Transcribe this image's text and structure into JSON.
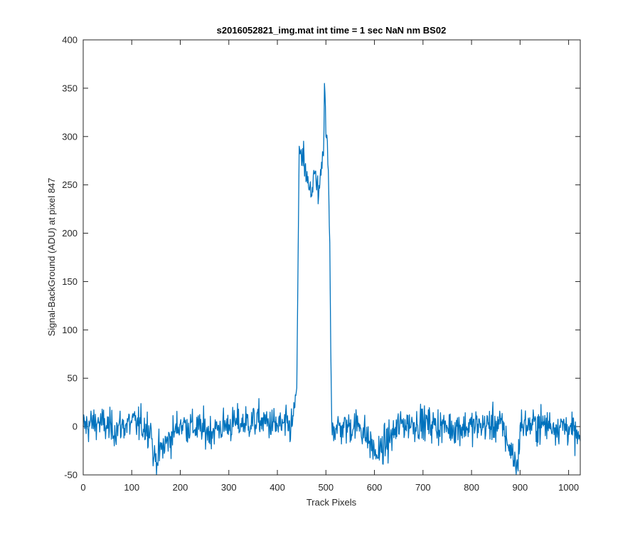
{
  "chart_data": {
    "type": "line",
    "title": "s2016052821_img.mat int time = 1 sec  NaN nm BS02",
    "xlabel": "Track Pixels",
    "ylabel": "Signal-BackGround (ADU) at pixel 847",
    "xlim": [
      0,
      1024
    ],
    "ylim": [
      -50,
      400
    ],
    "xticks": [
      0,
      100,
      200,
      300,
      400,
      500,
      600,
      700,
      800,
      900,
      1000
    ],
    "yticks": [
      -50,
      0,
      50,
      100,
      150,
      200,
      250,
      300,
      350,
      400
    ],
    "grid": false,
    "legend": "none",
    "series": [
      {
        "color": "#0072BD",
        "x": [
          0,
          30,
          60,
          100,
          140,
          145,
          200,
          260,
          300,
          365,
          400,
          430,
          440,
          445,
          450,
          455,
          460,
          465,
          470,
          475,
          480,
          485,
          490,
          495,
          497,
          500,
          503,
          505,
          508,
          510,
          512,
          515,
          520,
          570,
          605,
          655,
          700,
          750,
          800,
          860,
          895,
          900,
          950,
          1000,
          1024
        ],
        "y": [
          0,
          5,
          -3,
          4,
          -2,
          -35,
          3,
          -5,
          2,
          6,
          1,
          0,
          40,
          290,
          270,
          280,
          255,
          245,
          240,
          265,
          250,
          238,
          260,
          280,
          355,
          300,
          295,
          265,
          190,
          80,
          5,
          0,
          -2,
          2,
          -30,
          3,
          4,
          -1,
          0,
          3,
          -43,
          1,
          2,
          0,
          -15
        ]
      }
    ]
  }
}
